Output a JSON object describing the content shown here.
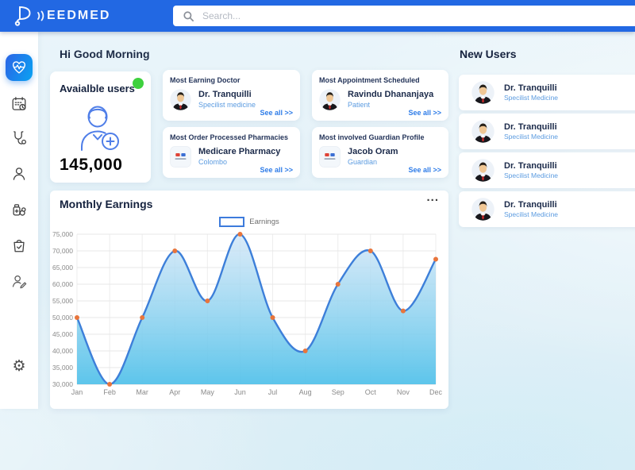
{
  "topbar": {
    "brand": "EEDMED",
    "search_placeholder": "Search..."
  },
  "sidebar": {
    "items": [
      {
        "id": "dashboard",
        "icon": "heart-pulse-icon",
        "active": true
      },
      {
        "id": "appointments",
        "icon": "calendar-clock-icon",
        "active": false
      },
      {
        "id": "doctors",
        "icon": "stethoscope-icon",
        "active": false
      },
      {
        "id": "patients",
        "icon": "user-icon",
        "active": false
      },
      {
        "id": "pharmacy",
        "icon": "medicine-icon",
        "active": false
      },
      {
        "id": "orders",
        "icon": "shopping-bag-icon",
        "active": false
      },
      {
        "id": "profiles",
        "icon": "user-edit-icon",
        "active": false
      },
      {
        "id": "settings",
        "icon": "gear-icon",
        "active": false
      }
    ]
  },
  "main": {
    "greeting": "Hi Good Morning",
    "stats_card": {
      "title": "Avaialble users",
      "count": "145,000",
      "status_color": "#3ed13e",
      "icon": "user-add-icon"
    },
    "info_cards": [
      {
        "title": "Most Earning Doctor",
        "name": "Dr. Tranquilli",
        "subtitle": "Specilist medicine",
        "see_all": "See all >>",
        "avatar": "doctor"
      },
      {
        "title": "Most Appointment Scheduled",
        "name": "Ravindu Dhananjaya",
        "subtitle": "Patient",
        "see_all": "See all >>",
        "avatar": "doctor"
      },
      {
        "title": "Most Order Processed Pharmacies",
        "name": "Medicare Pharmacy",
        "subtitle": "Colombo",
        "see_all": "See all >>",
        "avatar": "pharmacy"
      },
      {
        "title": "Most involved Guardian Profile",
        "name": "Jacob Oram",
        "subtitle": "Guardian",
        "see_all": "See all >>",
        "avatar": "pharmacy"
      }
    ],
    "chart_card": {
      "title": "Monthly Earnings",
      "menu": "..."
    }
  },
  "new_users": {
    "title": "New Users",
    "items": [
      {
        "name": "Dr. Tranquilli",
        "specialty": "Specilist Medicine"
      },
      {
        "name": "Dr. Tranquilli",
        "specialty": "Specilist Medicine"
      },
      {
        "name": "Dr. Tranquilli",
        "specialty": "Specilist Medicine"
      },
      {
        "name": "Dr. Tranquilli",
        "specialty": "Specilist Medicine"
      }
    ]
  },
  "chart_data": {
    "type": "line",
    "title": "Monthly Earnings",
    "categories": [
      "Jan",
      "Feb",
      "Mar",
      "Apr",
      "May",
      "Jun",
      "Jul",
      "Aug",
      "Sep",
      "Oct",
      "Nov",
      "Dec"
    ],
    "series": [
      {
        "name": "Earnings",
        "values": [
          50000,
          30000,
          50000,
          70000,
          55000,
          75000,
          50000,
          40000,
          60000,
          70000,
          52000,
          67500
        ]
      }
    ],
    "ylim": [
      30000,
      75000
    ],
    "ytick_step": 5000,
    "grid": true,
    "legend_position": "top",
    "line_color": "#3d7fd9",
    "point_color": "#e8753c",
    "area_gradient_top": "rgba(206,228,246,0.75)",
    "area_gradient_bottom": "rgba(84,194,234,0.95)"
  },
  "colors": {
    "topbar": "#2268e3",
    "accent_blue": "#2e7ce8",
    "subtitle_blue": "#5b9be0",
    "active_item_gradient_start": "#2b63e6",
    "active_item_gradient_end": "#0aa3f2",
    "status_green": "#3ed13e"
  }
}
